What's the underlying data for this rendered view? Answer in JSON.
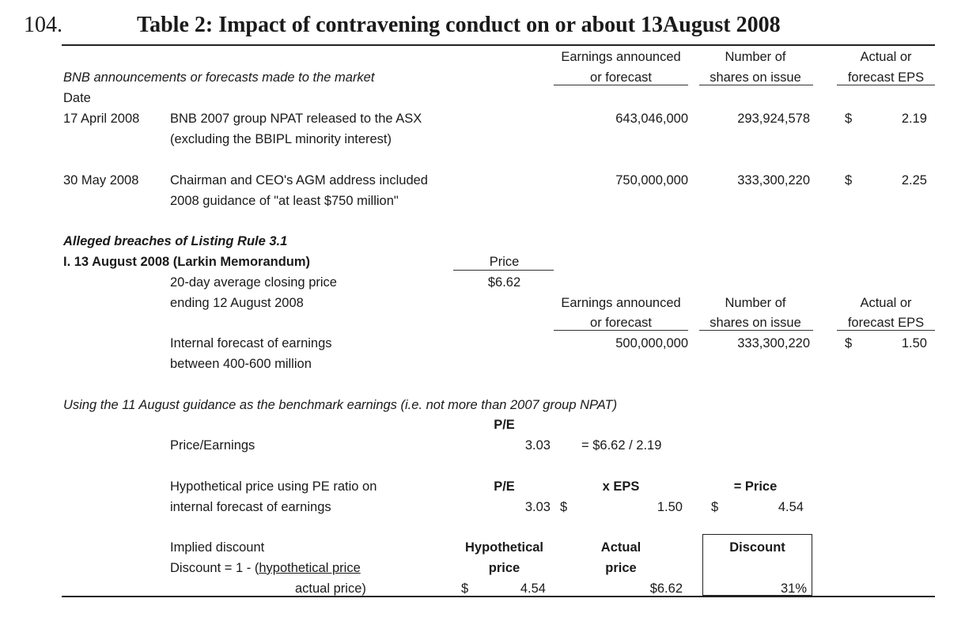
{
  "header": {
    "number": "104.",
    "title": "Table 2: Impact of contravening conduct on or about 13August 2008"
  },
  "cols_header": {
    "earnings_line1": "Earnings announced",
    "earnings_line2": "or forecast",
    "shares_line1": "Number of",
    "shares_line2": "shares on issue",
    "eps_line1": "Actual or",
    "eps_line2": "forecast EPS"
  },
  "section1": {
    "heading": "BNB announcements or forecasts made to the market",
    "date_label": "Date",
    "rows": [
      {
        "date": "17 April 2008",
        "desc1": "BNB 2007 group NPAT released to the ASX",
        "desc2": "(excluding the BBIPL minority interest)",
        "earnings": "643,046,000",
        "shares": "293,924,578",
        "currency": "$",
        "eps": "2.19"
      },
      {
        "date": "30 May 2008",
        "desc1": "Chairman and CEO's AGM address included",
        "desc2": "2008 guidance of \"at least $750 million\"",
        "earnings": "750,000,000",
        "shares": "333,300,220",
        "currency": "$",
        "eps": "2.25"
      }
    ]
  },
  "section2": {
    "heading": "Alleged breaches of Listing Rule 3.1",
    "subheading": "I. 13 August 2008 (Larkin Memorandum)",
    "price_label": "Price",
    "price_value": "$6.62",
    "avg_line1": "20-day average closing price",
    "avg_line2": "ending 12 August 2008",
    "forecast_line1": "Internal forecast of earnings",
    "forecast_line2": "between 400-600 million",
    "earnings": "500,000,000",
    "shares": "333,300,220",
    "currency": "$",
    "eps": "1.50"
  },
  "section3": {
    "note": "Using the 11 August guidance as the benchmark earnings (i.e. not more than 2007 group NPAT)",
    "pe_header": "P/E",
    "pe_label": "Price/Earnings",
    "pe_value": "3.03",
    "pe_formula": "= $6.62 / 2.19",
    "hyp_line1": "Hypothetical price using  PE ratio on",
    "hyp_line2": "internal forecast of earnings",
    "hyp_pe_header": "P/E",
    "hyp_eps_header": "x EPS",
    "hyp_price_header": "= Price",
    "hyp_pe_value": "3.03",
    "hyp_cur1": "$",
    "hyp_eps_value": "1.50",
    "hyp_cur2": "$",
    "hyp_price_value": "4.54",
    "disc_line1": "Implied discount",
    "disc_line2_prefix": "Discount = 1 - (",
    "disc_line2_under": "hypothetical price",
    "disc_line3": "actual price)",
    "hypothetical_h1": "Hypothetical",
    "hypothetical_h2": "price",
    "actual_h1": "Actual",
    "actual_h2": "price",
    "discount_h": "Discount",
    "disc_cur": "$",
    "hyp_price": "4.54",
    "actual_price": "$6.62",
    "discount_value": "31%"
  }
}
